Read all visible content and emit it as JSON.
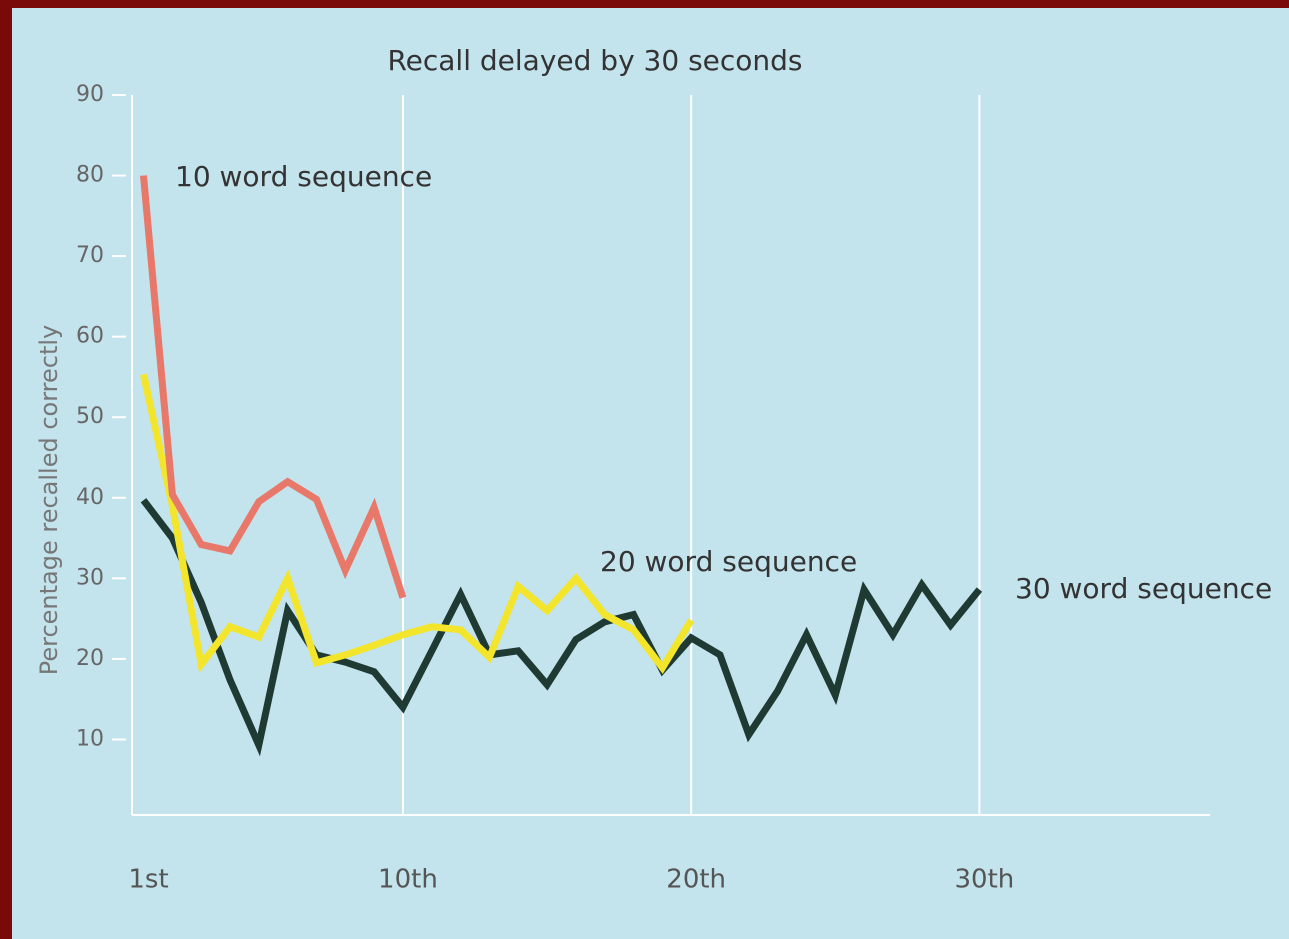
{
  "chart_data": {
    "type": "line",
    "title": "Recall delayed by 30 seconds",
    "y_label": "Percentage recalled correctly",
    "x": [
      1,
      2,
      3,
      4,
      5,
      6,
      7,
      8,
      9,
      10,
      11,
      12,
      13,
      14,
      15,
      16,
      17,
      18,
      19,
      20,
      21,
      22,
      23,
      24,
      25,
      26,
      27,
      28,
      29,
      30
    ],
    "xlim": [
      0.6,
      38
    ],
    "xticks": [
      {
        "value": 1,
        "label": "1st"
      },
      {
        "value": 10,
        "label": "10th"
      },
      {
        "value": 20,
        "label": "20th"
      },
      {
        "value": 30,
        "label": "30th"
      }
    ],
    "ylim": [
      0,
      90
    ],
    "yticks": [
      10,
      20,
      30,
      40,
      50,
      60,
      70,
      80,
      90
    ],
    "grid": true,
    "series": [
      {
        "name": "30 word sequence",
        "color": "#1f3a32",
        "values": [
          39.7,
          35,
          27,
          17.4,
          9.3,
          26,
          20.5,
          19.6,
          18.4,
          14,
          21,
          28,
          20.5,
          21,
          16.8,
          22.4,
          24.6,
          25.5,
          18.6,
          22.6,
          20.5,
          10.6,
          16,
          23,
          15.5,
          28.6,
          23,
          29.2,
          24.2,
          28.6
        ]
      },
      {
        "name": "20 word sequence",
        "color": "#f3e52c",
        "values": [
          55.3,
          39,
          19.3,
          24,
          22.7,
          30,
          19.5,
          20.5,
          21.7,
          23,
          24,
          23.6,
          20.2,
          29,
          26,
          30,
          25.5,
          23.6,
          18.9,
          24.8,
          null,
          null,
          null,
          null,
          null,
          null,
          null,
          null,
          null,
          null
        ]
      },
      {
        "name": "10 word sequence",
        "color": "#e8786a",
        "values": [
          80,
          40.4,
          34.2,
          33.4,
          39.5,
          42,
          39.8,
          31,
          38.8,
          27.6,
          null,
          null,
          null,
          null,
          null,
          null,
          null,
          null,
          null,
          null,
          null,
          null,
          null,
          null,
          null,
          null,
          null,
          null,
          null,
          null
        ]
      }
    ]
  }
}
